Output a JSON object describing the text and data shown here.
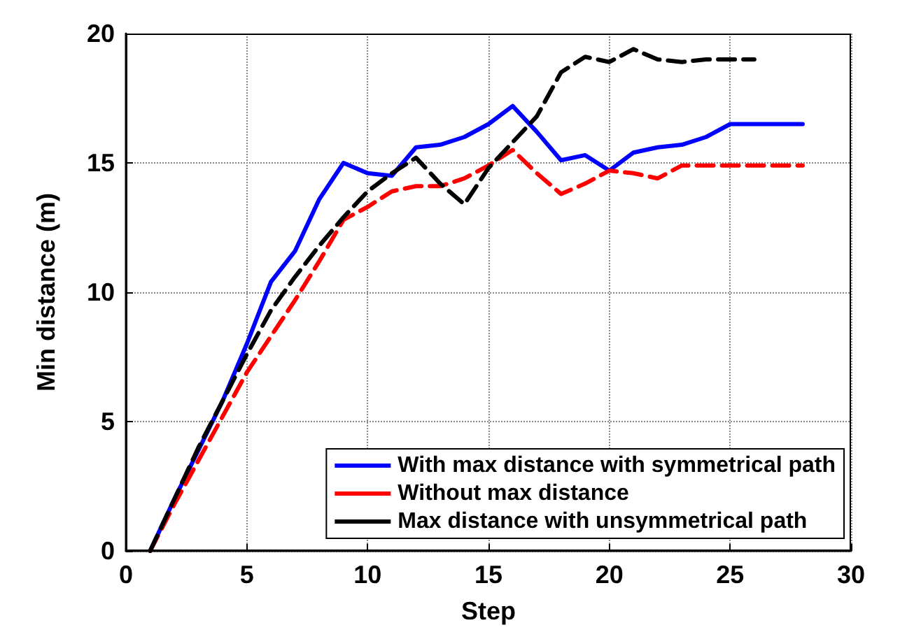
{
  "chart_data": {
    "type": "line",
    "xlabel": "Step",
    "ylabel": "Min distance (m)",
    "xlim": [
      0,
      30
    ],
    "xticks": [
      0,
      5,
      10,
      15,
      20,
      25,
      30
    ],
    "ylim": [
      0,
      20
    ],
    "yticks": [
      0,
      5,
      10,
      15,
      20
    ],
    "grid": true,
    "legend": "bottom right",
    "marker": "none",
    "series": [
      {
        "name": "With max distance with symmetrical path",
        "color": "#0000ff",
        "line_style": "solid",
        "x": [
          1,
          2,
          3,
          4,
          5,
          6,
          7,
          8,
          9,
          10,
          11,
          12,
          13,
          14,
          15,
          16,
          17,
          18,
          19,
          20,
          21,
          22,
          23,
          24,
          25,
          26,
          27,
          28
        ],
        "values": [
          0,
          2,
          3.9,
          5.8,
          8,
          10.4,
          11.6,
          13.6,
          15,
          14.6,
          14.5,
          15.6,
          15.7,
          16,
          16.5,
          17.2,
          16.2,
          15.1,
          15.3,
          14.7,
          15.4,
          15.6,
          15.7,
          16,
          16.5,
          16.5,
          16.5,
          16.5
        ]
      },
      {
        "name": "Without max distance",
        "color": "#ff0000",
        "line_style": "dashed",
        "x": [
          1,
          2,
          3,
          4,
          5,
          6,
          7,
          8,
          9,
          10,
          11,
          12,
          13,
          14,
          15,
          16,
          17,
          18,
          19,
          20,
          21,
          22,
          23,
          24,
          25,
          26,
          27,
          28
        ],
        "values": [
          0,
          1.8,
          3.5,
          5.2,
          6.9,
          8.3,
          9.7,
          11.2,
          12.8,
          13.3,
          13.9,
          14.1,
          14.1,
          14.4,
          14.9,
          15.5,
          14.6,
          13.8,
          14.2,
          14.7,
          14.6,
          14.4,
          14.9,
          14.9,
          14.9,
          14.9,
          14.9,
          14.9
        ]
      },
      {
        "name": "Max distance with unsymmetrical path",
        "color": "#000000",
        "line_style": "dashed",
        "x": [
          1,
          2,
          3,
          4,
          5,
          6,
          7,
          8,
          9,
          10,
          11,
          12,
          13,
          14,
          15,
          16,
          17,
          18,
          19,
          20,
          21,
          22,
          23,
          24,
          25,
          26
        ],
        "values": [
          0,
          2,
          4,
          5.8,
          7.6,
          9.3,
          10.6,
          11.8,
          12.9,
          13.9,
          14.6,
          15.2,
          14.2,
          13.4,
          14.8,
          15.8,
          16.8,
          18.5,
          19.1,
          18.9,
          19.4,
          19,
          18.9,
          19,
          19,
          19
        ]
      }
    ]
  }
}
